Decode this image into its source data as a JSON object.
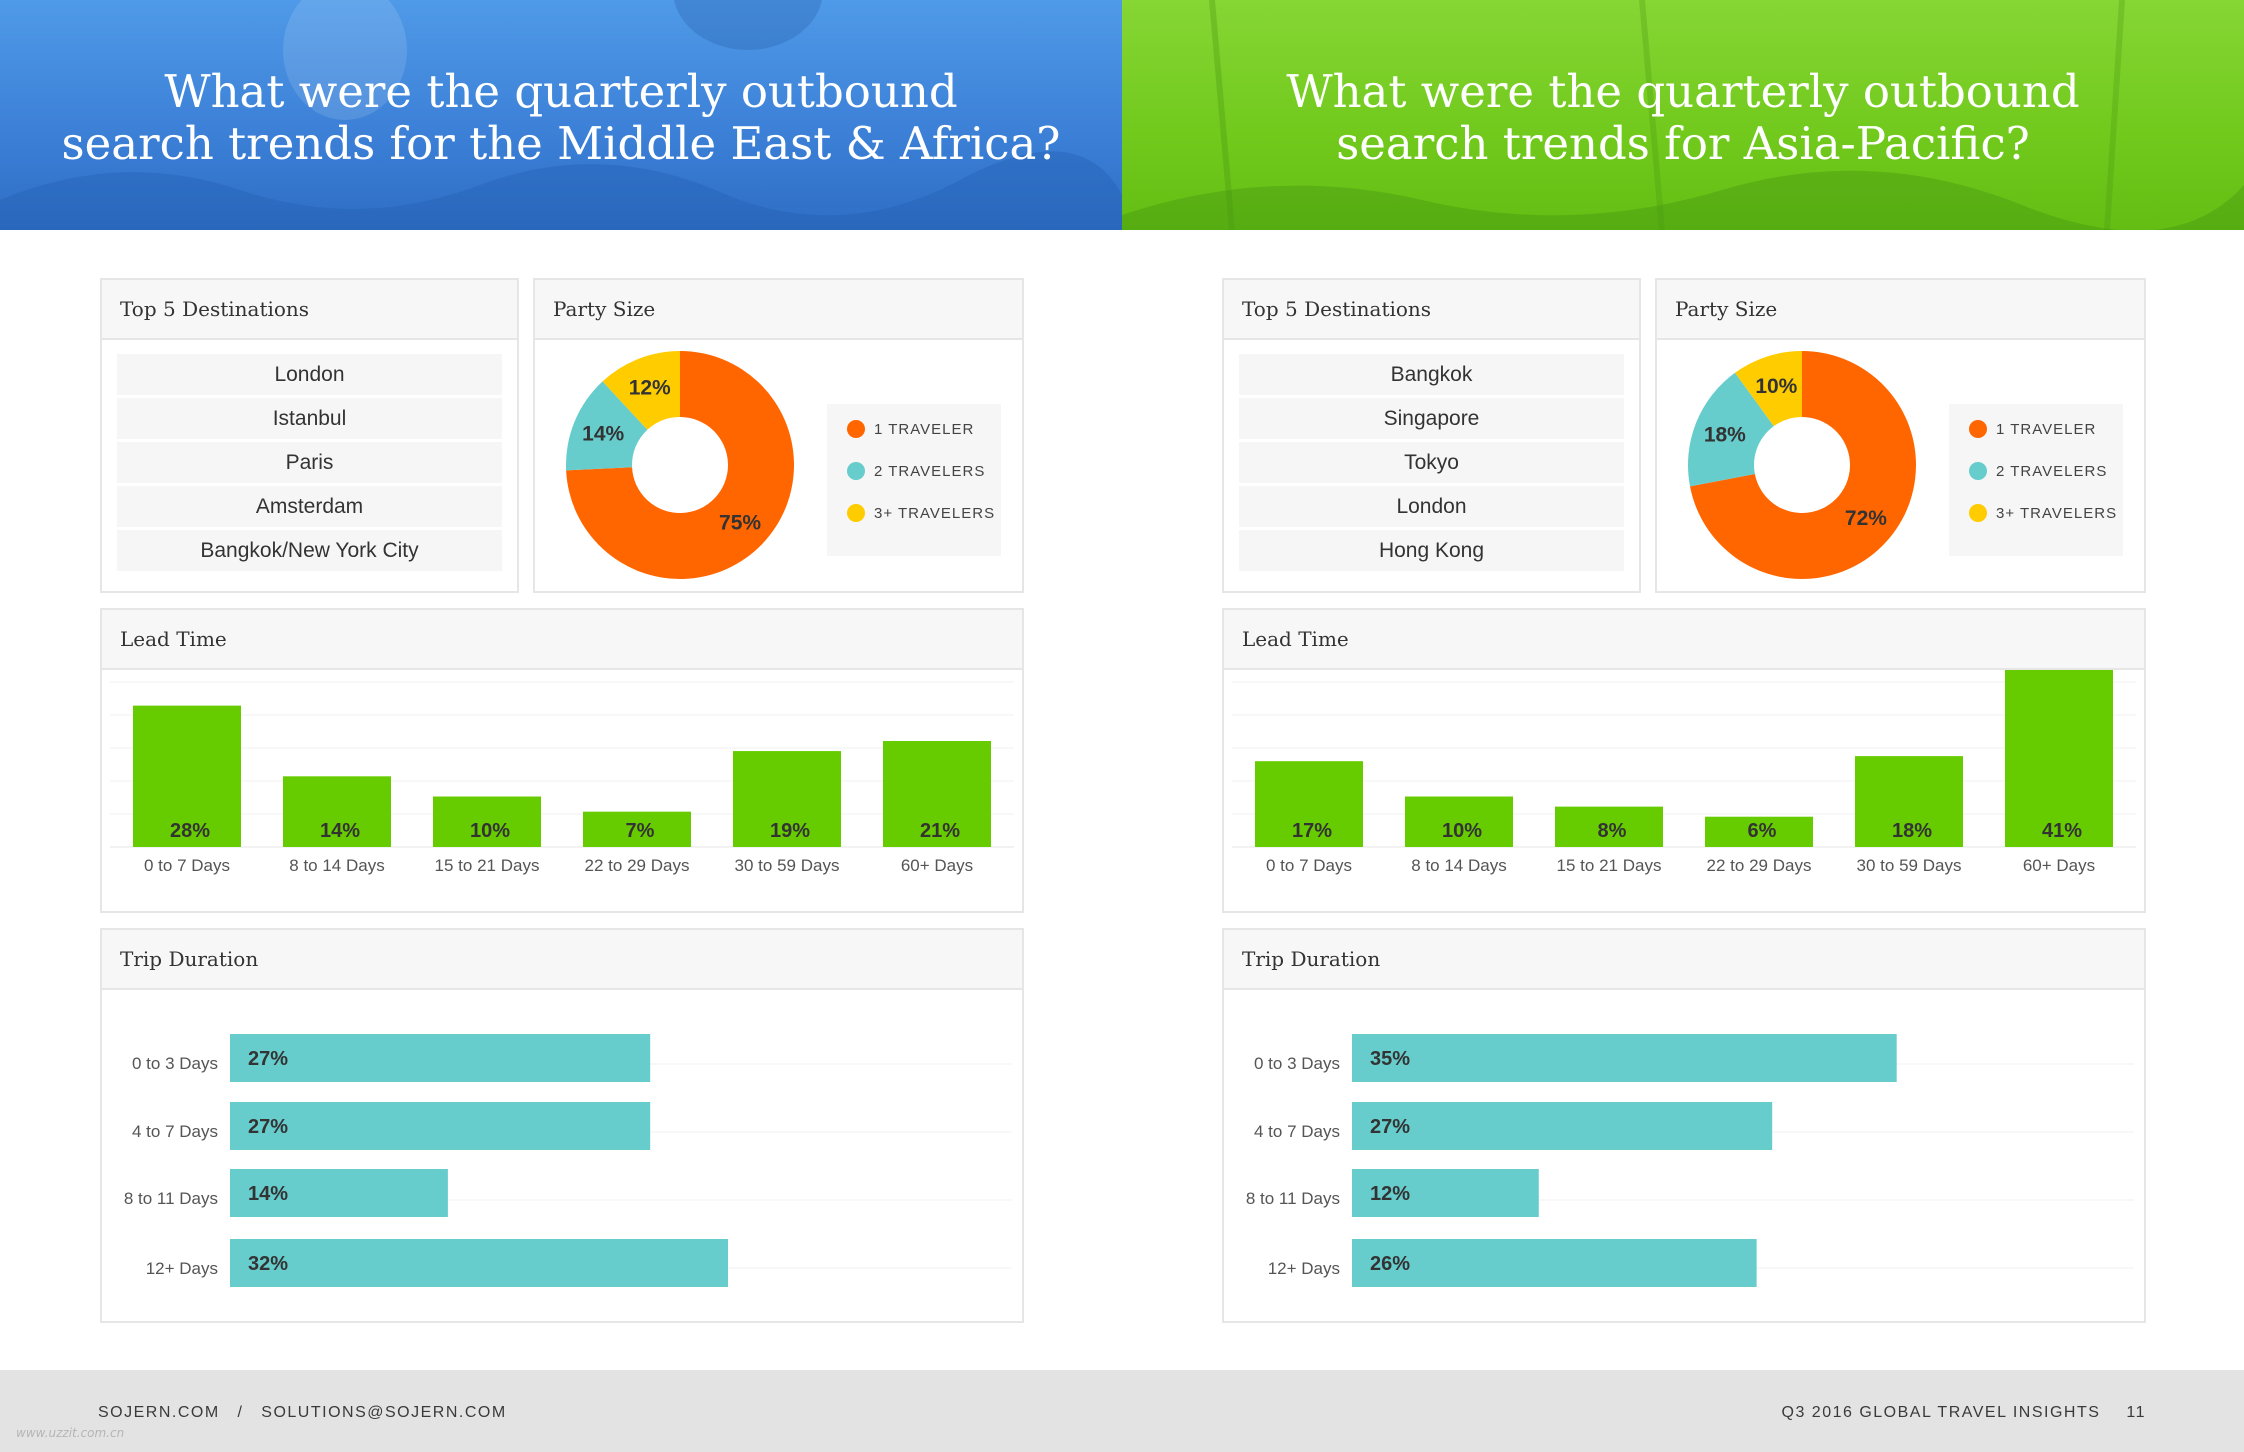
{
  "colors": {
    "green_bar": "#66cc00",
    "teal_bar": "#66cccc",
    "orange": "#ff6600",
    "yellow": "#ffcc00",
    "teal": "#66cccc"
  },
  "panels": [
    {
      "title_line1": "What were the quarterly outbound",
      "title_line2": "search trends for the Middle East & Africa?",
      "destinations_title": "Top 5 Destinations",
      "destinations": [
        "London",
        "Istanbul",
        "Paris",
        "Amsterdam",
        "Bangkok/New York City"
      ],
      "party_title": "Party Size",
      "lead_title": "Lead Time",
      "trip_title": "Trip Duration"
    },
    {
      "title_line1": "What were the quarterly outbound",
      "title_line2": "search trends for Asia-Pacific?",
      "destinations_title": "Top 5 Destinations",
      "destinations": [
        "Bangkok",
        "Singapore",
        "Tokyo",
        "London",
        "Hong Kong"
      ],
      "party_title": "Party Size",
      "lead_title": "Lead Time",
      "trip_title": "Trip Duration"
    }
  ],
  "chart_data": [
    {
      "type": "pie",
      "title": "Party Size",
      "region": "Middle East & Africa",
      "categories": [
        "1 TRAVELER",
        "2 TRAVELERS",
        "3+ TRAVELERS"
      ],
      "values": [
        75,
        14,
        12
      ],
      "labels": [
        "75%",
        "14%",
        "12%"
      ],
      "colors": [
        "#ff6600",
        "#66cccc",
        "#ffcc00"
      ]
    },
    {
      "type": "bar",
      "title": "Lead Time",
      "region": "Middle East & Africa",
      "categories": [
        "0 to 7 Days",
        "8 to 14 Days",
        "15 to 21 Days",
        "22 to 29 Days",
        "30 to 59 Days",
        "60+ Days"
      ],
      "values": [
        28,
        14,
        10,
        7,
        19,
        21
      ],
      "labels": [
        "28%",
        "14%",
        "10%",
        "7%",
        "19%",
        "21%"
      ],
      "ylim": [
        0,
        45
      ]
    },
    {
      "type": "bar",
      "orientation": "horizontal",
      "title": "Trip Duration",
      "region": "Middle East & Africa",
      "categories": [
        "0 to 3 Days",
        "4 to 7 Days",
        "8 to 11 Days",
        "12+ Days"
      ],
      "values": [
        27,
        27,
        14,
        32
      ],
      "labels": [
        "27%",
        "27%",
        "14%",
        "32%"
      ],
      "xlim": [
        0,
        50
      ]
    },
    {
      "type": "pie",
      "title": "Party Size",
      "region": "Asia-Pacific",
      "categories": [
        "1 TRAVELER",
        "2 TRAVELERS",
        "3+ TRAVELERS"
      ],
      "values": [
        72,
        18,
        10
      ],
      "labels": [
        "72%",
        "18%",
        "10%"
      ],
      "colors": [
        "#ff6600",
        "#66cccc",
        "#ffcc00"
      ]
    },
    {
      "type": "bar",
      "title": "Lead Time",
      "region": "Asia-Pacific",
      "categories": [
        "0 to 7 Days",
        "8 to 14 Days",
        "15 to 21 Days",
        "22 to 29 Days",
        "30 to 59 Days",
        "60+ Days"
      ],
      "values": [
        17,
        10,
        8,
        6,
        18,
        41
      ],
      "labels": [
        "17%",
        "10%",
        "8%",
        "6%",
        "18%",
        "41%"
      ],
      "ylim": [
        0,
        45
      ]
    },
    {
      "type": "bar",
      "orientation": "horizontal",
      "title": "Trip Duration",
      "region": "Asia-Pacific",
      "categories": [
        "0 to 3 Days",
        "4 to 7 Days",
        "8 to 11 Days",
        "12+ Days"
      ],
      "values": [
        35,
        27,
        12,
        26
      ],
      "labels": [
        "35%",
        "27%",
        "12%",
        "26%"
      ],
      "xlim": [
        0,
        50
      ]
    }
  ],
  "footer": {
    "left": "SOJERN.COM   /   SOLUTIONS@SOJERN.COM",
    "right": "Q3 2016 GLOBAL TRAVEL INSIGHTS",
    "page": "11",
    "watermark": "www.uzzit.com.cn"
  }
}
